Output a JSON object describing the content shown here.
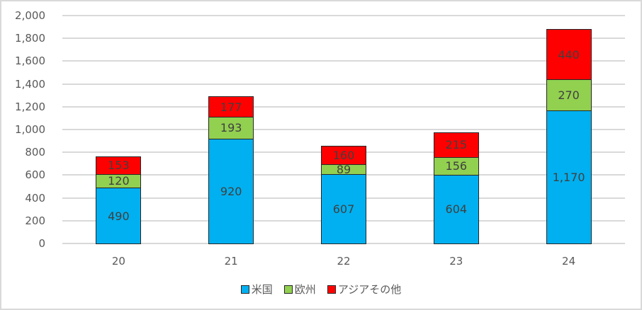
{
  "chart_data": {
    "type": "bar",
    "stacked": true,
    "title": "",
    "xlabel": "",
    "ylabel": "",
    "categories": [
      "20",
      "21",
      "22",
      "23",
      "24"
    ],
    "series": [
      {
        "name": "米国",
        "color": "#00B0F0",
        "values": [
          490,
          920,
          607,
          604,
          1170
        ],
        "labels": [
          "490",
          "920",
          "607",
          "604",
          "1,170"
        ]
      },
      {
        "name": "欧州",
        "color": "#92D050",
        "values": [
          120,
          193,
          89,
          156,
          270
        ],
        "labels": [
          "120",
          "193",
          "89",
          "156",
          "270"
        ]
      },
      {
        "name": "アジアその他",
        "color": "#FF0000",
        "values": [
          153,
          177,
          160,
          215,
          440
        ],
        "labels": [
          "153",
          "177",
          "160",
          "215",
          "440"
        ]
      }
    ],
    "ylim": [
      0,
      2000
    ],
    "yticks": [
      "0",
      "200",
      "400",
      "600",
      "800",
      "1,000",
      "1,200",
      "1,400",
      "1,600",
      "1,800",
      "2,000"
    ],
    "grid": true,
    "legend_position": "bottom"
  }
}
